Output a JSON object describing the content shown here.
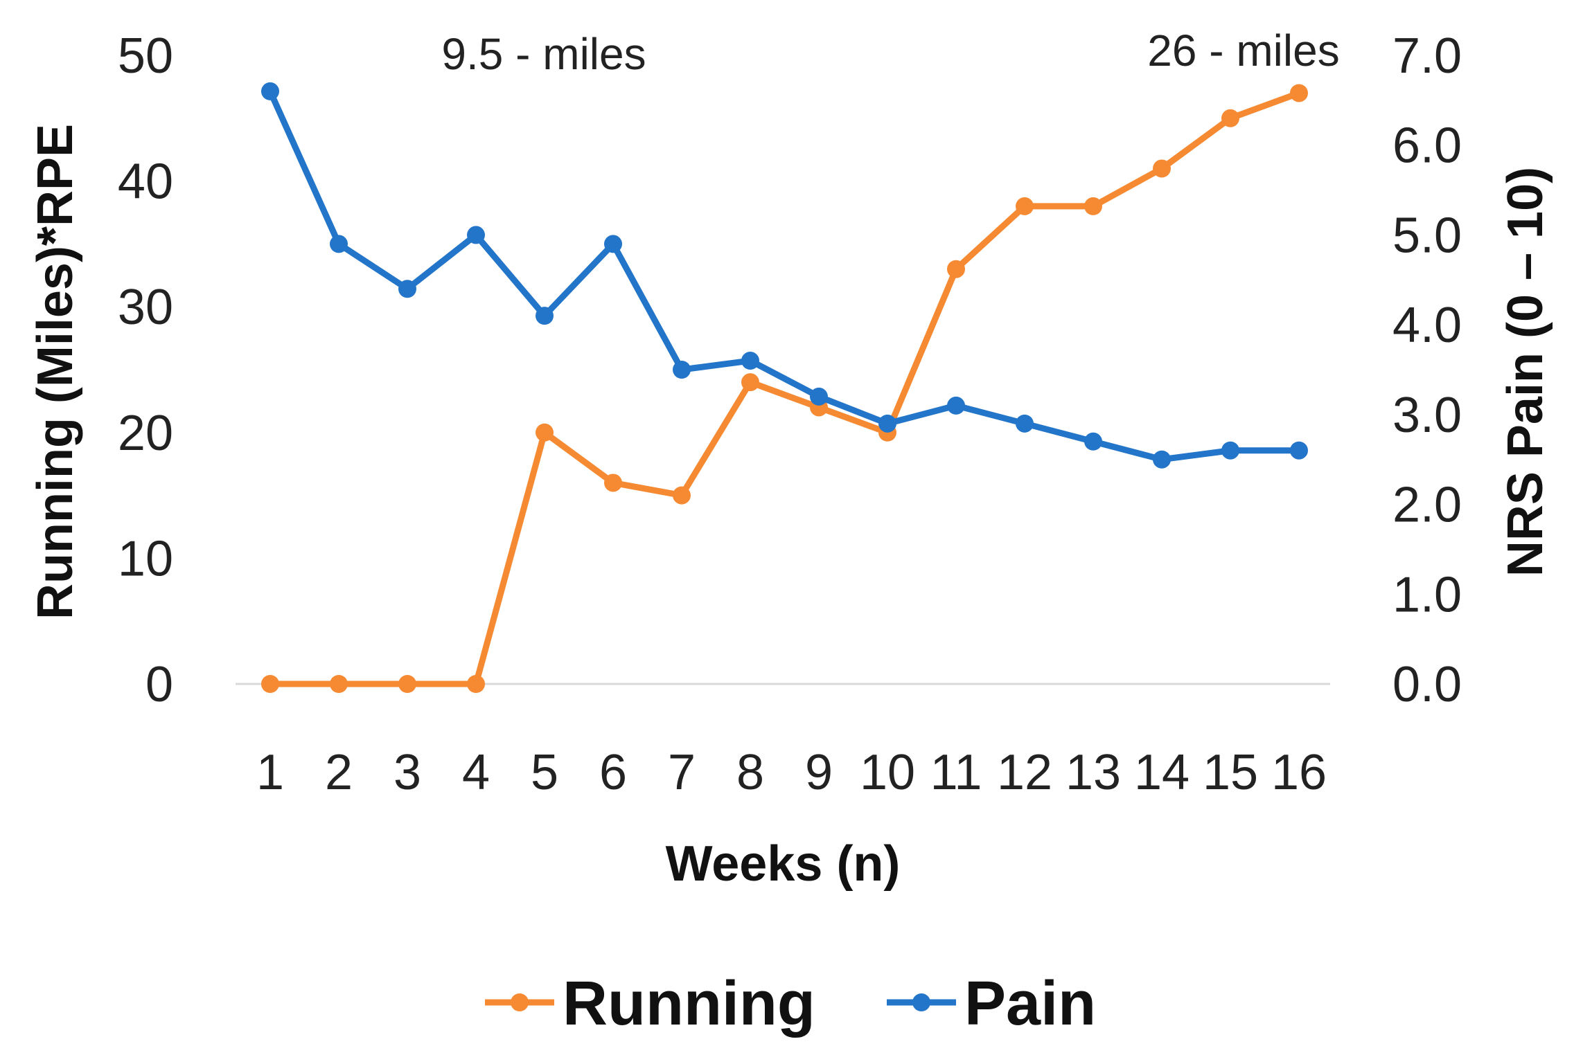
{
  "chart_data": {
    "type": "line",
    "title": "",
    "xlabel": "Weeks (n)",
    "ylabel_left": "Running (Miles)*RPE",
    "ylabel_right": "NRS Pain (0 – 10)",
    "x": [
      "1",
      "2",
      "3",
      "4",
      "5",
      "6",
      "7",
      "8",
      "9",
      "10",
      "11",
      "12",
      "13",
      "14",
      "15",
      "16"
    ],
    "ylim_left": [
      0,
      50
    ],
    "yticks_left": [
      "0",
      "10",
      "20",
      "30",
      "40",
      "50"
    ],
    "ylim_right": [
      0,
      7
    ],
    "yticks_right": [
      "0.0",
      "1.0",
      "2.0",
      "3.0",
      "4.0",
      "5.0",
      "6.0",
      "7.0"
    ],
    "grid": false,
    "legend_position": "bottom",
    "series": [
      {
        "name": "Running",
        "axis": "left",
        "color": "#F58A33",
        "values": [
          0,
          0,
          0,
          0,
          20,
          16,
          15,
          24,
          22,
          20,
          33,
          38,
          38,
          41,
          45,
          47
        ]
      },
      {
        "name": "Pain",
        "axis": "right",
        "color": "#2275C9",
        "values": [
          6.6,
          4.9,
          4.4,
          5.0,
          4.1,
          4.9,
          3.5,
          3.6,
          3.2,
          2.9,
          3.1,
          2.9,
          2.7,
          2.5,
          2.6,
          2.6
        ]
      }
    ],
    "annotations": [
      {
        "text": "9.5 - miles",
        "at_x": "5"
      },
      {
        "text": "26 - miles",
        "at_x": "16"
      }
    ]
  }
}
